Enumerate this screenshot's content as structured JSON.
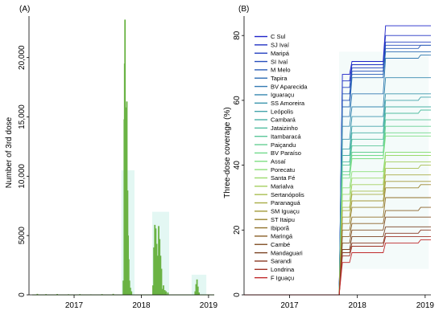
{
  "chart_data": [
    {
      "type": "bar",
      "panel_label": "(A)",
      "ylabel": "Number of 3rd dose",
      "x_ticks": [
        "2017",
        "2018",
        "2019"
      ],
      "y_ticks": [
        "0",
        "5000",
        "10,000",
        "15,000",
        "20,000"
      ],
      "ylim": [
        0,
        23500
      ],
      "xlim": [
        "2016-05-01",
        "2019-02-01"
      ],
      "bar_color": "#6ab344",
      "shading_color": "#e3f7f3",
      "shading_bands": [
        {
          "x0": "2017-09-15",
          "x1": "2017-11-25",
          "top": 10500
        },
        {
          "x0": "2018-03-01",
          "x1": "2018-06-01",
          "top": 7000
        },
        {
          "x0": "2018-10-01",
          "x1": "2018-12-20",
          "top": 1700
        }
      ],
      "x": [
        "2016-06-15",
        "2016-08-01",
        "2016-10-01",
        "2016-12-01",
        "2017-02-01",
        "2017-04-01",
        "2017-06-01",
        "2017-08-01",
        "2017-09-25",
        "2017-09-30",
        "2017-10-02",
        "2017-10-04",
        "2017-10-07",
        "2017-10-09",
        "2017-10-11",
        "2017-10-14",
        "2017-10-16",
        "2017-10-18",
        "2017-10-21",
        "2017-10-24",
        "2017-10-28",
        "2017-11-02",
        "2017-11-08",
        "2018-03-05",
        "2018-03-10",
        "2018-03-15",
        "2018-03-20",
        "2018-03-25",
        "2018-03-30",
        "2018-04-05",
        "2018-04-10",
        "2018-04-15",
        "2018-04-20",
        "2018-04-25",
        "2018-05-01",
        "2018-05-08",
        "2018-05-15",
        "2018-05-25",
        "2018-10-20",
        "2018-10-25",
        "2018-10-30",
        "2018-11-04",
        "2018-11-10"
      ],
      "values": [
        80,
        60,
        70,
        50,
        60,
        40,
        60,
        80,
        1200,
        14800,
        19500,
        23200,
        14500,
        15800,
        10500,
        16300,
        8200,
        8800,
        5000,
        3000,
        1200,
        600,
        300,
        800,
        4000,
        5900,
        5600,
        4300,
        3300,
        5800,
        4700,
        3300,
        2200,
        500,
        800,
        400,
        300,
        200,
        300,
        900,
        1300,
        700,
        200
      ]
    },
    {
      "type": "line",
      "panel_label": "(B)",
      "ylabel": "Three-dose coverage (%)",
      "x_ticks": [
        "2017",
        "2018",
        "2019"
      ],
      "y_ticks": [
        "0",
        "20",
        "40",
        "60",
        "80"
      ],
      "ylim": [
        0,
        86
      ],
      "xlim": [
        "2016-05-01",
        "2019-02-01"
      ],
      "legend_position": "top-left",
      "legend": [
        {
          "name": "C Sul",
          "color": "#1f24c9"
        },
        {
          "name": "SJ Ivaí",
          "color": "#2233c4"
        },
        {
          "name": "Maripá",
          "color": "#2541c0"
        },
        {
          "name": "SI Ivaí",
          "color": "#284fbc"
        },
        {
          "name": "M Melo",
          "color": "#2b5db8"
        },
        {
          "name": "Tapira",
          "color": "#2e6cb4"
        },
        {
          "name": "BV Aparecida",
          "color": "#337ab2"
        },
        {
          "name": "Iguaraçu",
          "color": "#3889b0"
        },
        {
          "name": "SS Amoreira",
          "color": "#3e97ae"
        },
        {
          "name": "Leópolis",
          "color": "#44a4ab"
        },
        {
          "name": "Cambará",
          "color": "#4ab0a6"
        },
        {
          "name": "Jataizinho",
          "color": "#52bda0"
        },
        {
          "name": "Itambaracá",
          "color": "#5cc79a"
        },
        {
          "name": "Paiçandu",
          "color": "#66d093"
        },
        {
          "name": "BV Paraíso",
          "color": "#72d98c"
        },
        {
          "name": "Assaí",
          "color": "#7fdf84"
        },
        {
          "name": "Porecatu",
          "color": "#8ddf7a"
        },
        {
          "name": "Santa Fé",
          "color": "#9bdb6d"
        },
        {
          "name": "Marialva",
          "color": "#a5cf60"
        },
        {
          "name": "Sertanópolis",
          "color": "#a9bf52"
        },
        {
          "name": "Paranaguá",
          "color": "#a8ad45"
        },
        {
          "name": "SM Iguaçu",
          "color": "#a39a3a"
        },
        {
          "name": "ST Itaipu",
          "color": "#9b8632"
        },
        {
          "name": "Ibiporã",
          "color": "#92732c"
        },
        {
          "name": "Maringá",
          "color": "#8a6128"
        },
        {
          "name": "Cambé",
          "color": "#825126"
        },
        {
          "name": "Mandaguari",
          "color": "#7b4424"
        },
        {
          "name": "Sarandi",
          "color": "#8a3a24"
        },
        {
          "name": "Londrina",
          "color": "#a03428"
        },
        {
          "name": "F Iguaçu",
          "color": "#c02a2c"
        }
      ],
      "step_dates": [
        "2016-05-01",
        "2017-09-25",
        "2017-11-20",
        "2018-03-20",
        "2018-05-20",
        "2018-10-25",
        "2018-11-25",
        "2019-02-01"
      ],
      "series": [
        {
          "name": "C Sul",
          "values": [
            0,
            68,
            72,
            72,
            83,
            83,
            83,
            83
          ]
        },
        {
          "name": "SJ Ivaí",
          "values": [
            0,
            66,
            71,
            71,
            80,
            80,
            80,
            80
          ]
        },
        {
          "name": "Maripá",
          "values": [
            0,
            64,
            70,
            70,
            78,
            78,
            78,
            78
          ]
        },
        {
          "name": "SI Ivaí",
          "values": [
            0,
            60,
            69,
            69,
            77,
            77,
            77,
            77
          ]
        },
        {
          "name": "M Melo",
          "values": [
            0,
            62,
            68,
            68,
            76,
            76,
            77,
            77
          ]
        },
        {
          "name": "Tapira",
          "values": [
            0,
            58,
            67,
            67,
            75,
            75,
            75,
            75
          ]
        },
        {
          "name": "BV Aparecida",
          "values": [
            0,
            55,
            62,
            62,
            73,
            73,
            74,
            74
          ]
        },
        {
          "name": "Iguaraçu",
          "values": [
            0,
            52,
            58,
            58,
            67,
            67,
            67,
            67
          ]
        },
        {
          "name": "SS Amoreira",
          "values": [
            0,
            48,
            55,
            55,
            62,
            62,
            62,
            62
          ]
        },
        {
          "name": "Leópolis",
          "values": [
            0,
            45,
            52,
            52,
            60,
            60,
            61,
            61
          ]
        },
        {
          "name": "Cambará",
          "values": [
            0,
            43,
            50,
            50,
            58,
            58,
            58,
            58
          ]
        },
        {
          "name": "Jataizinho",
          "values": [
            0,
            41,
            48,
            48,
            56,
            56,
            57,
            57
          ]
        },
        {
          "name": "Itambaracá",
          "values": [
            0,
            40,
            46,
            46,
            54,
            54,
            54,
            54
          ]
        },
        {
          "name": "Paiçandu",
          "values": [
            0,
            38,
            44,
            44,
            52,
            52,
            52,
            52
          ]
        },
        {
          "name": "BV Paraíso",
          "values": [
            0,
            37,
            43,
            43,
            50,
            50,
            50,
            50
          ]
        },
        {
          "name": "Assaí",
          "values": [
            0,
            36,
            42,
            42,
            49,
            49,
            49,
            49
          ]
        },
        {
          "name": "Porecatu",
          "values": [
            0,
            33,
            38,
            38,
            44,
            44,
            44,
            44
          ]
        },
        {
          "name": "Santa Fé",
          "values": [
            0,
            31,
            36,
            36,
            43,
            43,
            43,
            43
          ]
        },
        {
          "name": "Marialva",
          "values": [
            0,
            29,
            34,
            34,
            41,
            41,
            41,
            41
          ]
        },
        {
          "name": "Sertanópolis",
          "values": [
            0,
            27,
            32,
            32,
            39,
            39,
            40,
            40
          ]
        },
        {
          "name": "Paranaguá",
          "values": [
            0,
            26,
            31,
            31,
            37,
            37,
            37,
            37
          ]
        },
        {
          "name": "SM Iguaçu",
          "values": [
            0,
            24,
            29,
            29,
            35,
            35,
            35,
            35
          ]
        },
        {
          "name": "ST Itaipu",
          "values": [
            0,
            22,
            27,
            27,
            33,
            33,
            34,
            34
          ]
        },
        {
          "name": "Ibiporã",
          "values": [
            0,
            20,
            24,
            24,
            30,
            30,
            30,
            30
          ]
        },
        {
          "name": "Maringá",
          "values": [
            0,
            18,
            22,
            22,
            26,
            26,
            27,
            27
          ]
        },
        {
          "name": "Cambé",
          "values": [
            0,
            16,
            20,
            20,
            24,
            24,
            24,
            24
          ]
        },
        {
          "name": "Mandaguari",
          "values": [
            0,
            14,
            18,
            18,
            21,
            21,
            21,
            21
          ]
        },
        {
          "name": "Sarandi",
          "values": [
            0,
            13,
            16,
            16,
            19,
            19,
            20,
            20
          ]
        },
        {
          "name": "Londrina",
          "values": [
            0,
            12,
            15,
            15,
            18,
            18,
            18,
            18
          ]
        },
        {
          "name": "F Iguaçu",
          "values": [
            0,
            10,
            13,
            13,
            16,
            16,
            17,
            17
          ]
        }
      ]
    }
  ]
}
